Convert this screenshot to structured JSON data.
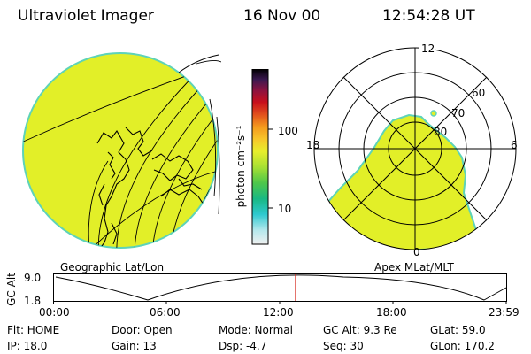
{
  "header": {
    "instrument": "Ultraviolet Imager",
    "date": "16 Nov 00",
    "time": "12:54:28 UT"
  },
  "left_panel": {
    "label": "Geographic Lat/Lon"
  },
  "right_panel": {
    "label": "Apex MLat/MLT",
    "mlt_labels": {
      "top": "12",
      "left": "18",
      "right": "6",
      "bottom": "0"
    },
    "lat_labels": [
      "60",
      "70",
      "80"
    ]
  },
  "colorbar": {
    "unit_label": "photon cm⁻²s⁻¹",
    "tick_labels": [
      "100",
      "10"
    ]
  },
  "altitude_plot": {
    "ylabel": "GC Alt",
    "y_ticks": [
      "9.0",
      "1.8"
    ],
    "x_ticks": [
      "00:00",
      "06:00",
      "12:00",
      "18:00",
      "23:59"
    ],
    "marker_time": "12:54",
    "marker_color": "#d62a1e"
  },
  "info": {
    "flt": "Flt: HOME",
    "door": "Door: Open",
    "mode": "Mode: Normal",
    "gc_alt": "GC Alt: 9.3 Re",
    "glat": "GLat:  59.0",
    "ip": "IP: 18.0",
    "gain": "Gain: 13",
    "dsp": "Dsp:   -4.7",
    "seq": "Seq: 30",
    "glon": "GLon: 170.2"
  },
  "colors": {
    "image_fill": "#e2ef28",
    "image_edge": "#5ed3b8",
    "colorbar_stops": [
      "#f0f0f0",
      "#b5e8ec",
      "#2fc9d0",
      "#19b883",
      "#4ec74a",
      "#a7e033",
      "#e8ef2c",
      "#f8c62a",
      "#f49a1d",
      "#e2501c",
      "#c8101c",
      "#8a1240",
      "#3a1850",
      "#000000"
    ]
  }
}
